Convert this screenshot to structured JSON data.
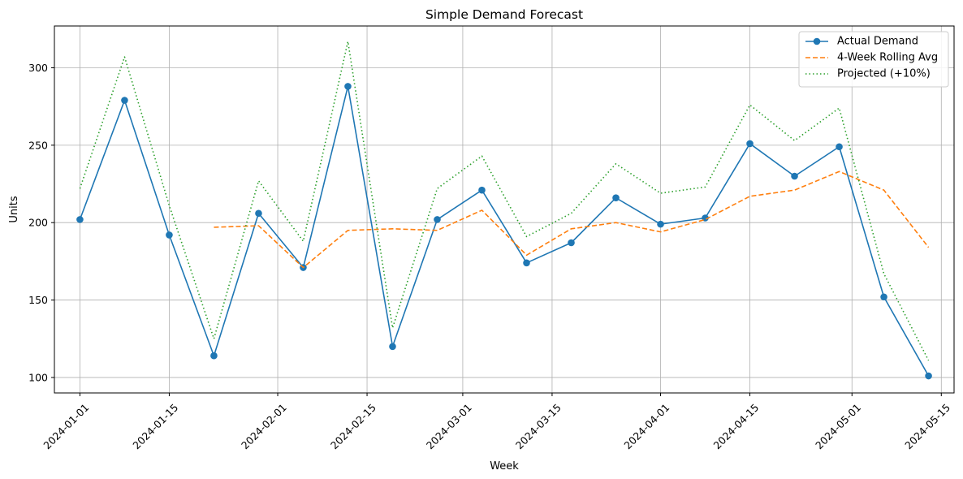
{
  "chart_data": {
    "type": "line",
    "title": "Simple Demand Forecast",
    "xlabel": "Week",
    "ylabel": "Units",
    "x": [
      "2024-01-01",
      "2024-01-08",
      "2024-01-15",
      "2024-01-22",
      "2024-01-29",
      "2024-02-05",
      "2024-02-12",
      "2024-02-19",
      "2024-02-26",
      "2024-03-04",
      "2024-03-11",
      "2024-03-18",
      "2024-03-25",
      "2024-04-01",
      "2024-04-08",
      "2024-04-15",
      "2024-04-22",
      "2024-04-29",
      "2024-05-06",
      "2024-05-13"
    ],
    "xlim": [
      "2023-12-28",
      "2024-05-17"
    ],
    "ylim": [
      90,
      327
    ],
    "x_ticks": [
      "2024-01-01",
      "2024-01-15",
      "2024-02-01",
      "2024-02-15",
      "2024-03-01",
      "2024-03-15",
      "2024-04-01",
      "2024-04-15",
      "2024-05-01",
      "2024-05-15"
    ],
    "y_ticks": [
      100,
      150,
      200,
      250,
      300
    ],
    "grid": true,
    "legend_position": "top-right",
    "series": [
      {
        "name": "Actual Demand",
        "color": "#1f77b4",
        "style": "solid-marker",
        "values": [
          202,
          279,
          192,
          114,
          206,
          171,
          288,
          120,
          202,
          221,
          174,
          187,
          216,
          199,
          203,
          251,
          230,
          249,
          152,
          101
        ]
      },
      {
        "name": "4-Week Rolling Avg",
        "color": "#ff7f0e",
        "style": "dashed",
        "values": [
          null,
          null,
          null,
          197,
          198,
          171,
          195,
          196,
          195,
          208,
          179,
          196,
          200,
          194,
          202,
          217,
          221,
          233,
          221,
          184
        ]
      },
      {
        "name": "Projected (+10%)",
        "color": "#2ca02c",
        "style": "dotted",
        "values": [
          222,
          307,
          211,
          125,
          227,
          188,
          317,
          132,
          222,
          243,
          191,
          206,
          238,
          219,
          223,
          276,
          253,
          274,
          167,
          111
        ]
      }
    ]
  }
}
